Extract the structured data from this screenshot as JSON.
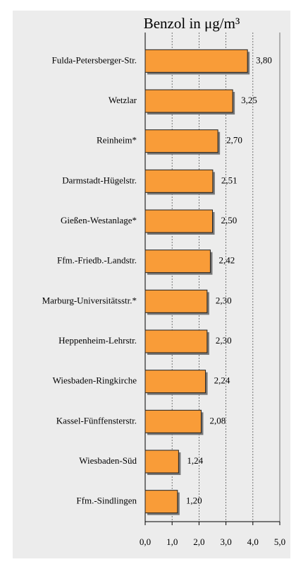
{
  "chart_data": {
    "type": "barh",
    "title": "Benzol in μg/m³",
    "categories": [
      "Fulda-Petersberger-Str.",
      "Wetzlar",
      "Reinheim*",
      "Darmstadt-Hügelstr.",
      "Gießen-Westanlage*",
      "Ffm.-Friedb.-Landstr.",
      "Marburg-Universitätsstr.*",
      "Heppenheim-Lehrstr.",
      "Wiesbaden-Ringkirche",
      "Kassel-Fünffensterstr.",
      "Wiesbaden-Süd",
      "Ffm.-Sindlingen"
    ],
    "values": [
      3.8,
      3.25,
      2.7,
      2.51,
      2.5,
      2.42,
      2.3,
      2.3,
      2.24,
      2.08,
      1.24,
      1.2
    ],
    "value_labels": [
      "3,80",
      "3,25",
      "2,70",
      "2,51",
      "2,50",
      "2,42",
      "2,30",
      "2,30",
      "2,24",
      "2,08",
      "1,24",
      "1,20"
    ],
    "color": "#f99c38",
    "xlim": [
      0,
      5
    ],
    "xticks": [
      {
        "value": 0,
        "label": "0,0"
      },
      {
        "value": 1,
        "label": "1,0"
      },
      {
        "value": 2,
        "label": "2,0"
      },
      {
        "value": 3,
        "label": "3,0"
      },
      {
        "value": 4,
        "label": "4,0"
      },
      {
        "value": 5,
        "label": "5,0"
      }
    ],
    "grid": true
  }
}
